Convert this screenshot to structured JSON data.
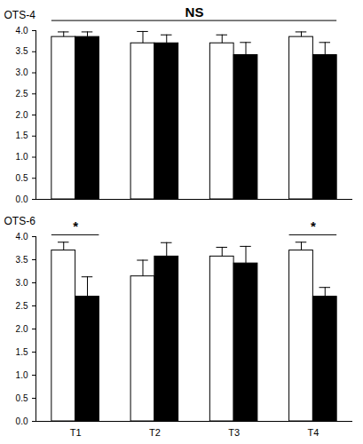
{
  "chart_data": [
    {
      "type": "bar",
      "title": "OTS-4",
      "categories": [
        null,
        null,
        null,
        null
      ],
      "series": [
        {
          "color": "#ffffff",
          "values": [
            3.85,
            3.7,
            3.7,
            3.85
          ],
          "errors": [
            0.12,
            0.28,
            0.2,
            0.12
          ]
        },
        {
          "color": "#000000",
          "values": [
            3.85,
            3.7,
            3.42,
            3.42
          ],
          "errors": [
            0.12,
            0.2,
            0.3,
            0.3
          ]
        }
      ],
      "ylim": [
        0,
        4
      ],
      "yticks": [
        {
          "value": 0,
          "label": "0.0"
        },
        0.5,
        {
          "value": 1,
          "label": "1.0"
        },
        1.5,
        {
          "value": 2,
          "label": "2.0"
        },
        2.5,
        {
          "value": 3,
          "label": "3.0"
        },
        3.5,
        {
          "value": 4,
          "label": "4.0"
        }
      ],
      "tick_labels": "y",
      "annotations": [
        {
          "text": "NS",
          "span": [
            0,
            3
          ]
        }
      ]
    },
    {
      "type": "bar",
      "title": "OTS-6",
      "categories": [
        "T1",
        "T2",
        "T3",
        "T4"
      ],
      "series": [
        {
          "color": "#ffffff",
          "values": [
            3.7,
            3.14,
            3.57,
            3.7
          ],
          "errors": [
            0.18,
            0.35,
            0.2,
            0.18
          ]
        },
        {
          "color": "#000000",
          "values": [
            2.7,
            3.57,
            3.42,
            2.7
          ],
          "errors": [
            0.43,
            0.3,
            0.37,
            0.2
          ]
        }
      ],
      "ylim": [
        0,
        4
      ],
      "yticks": [
        {
          "value": 0,
          "label": "0.0"
        },
        0.5,
        {
          "value": 1,
          "label": "1.0"
        },
        1.5,
        {
          "value": 2,
          "label": "2.0"
        },
        2.5,
        {
          "value": 3,
          "label": "3.0"
        },
        3.5,
        {
          "value": 4,
          "label": "4.0"
        }
      ],
      "annotations": [
        {
          "text": "*",
          "span": [
            0,
            0
          ]
        },
        {
          "text": "*",
          "span": [
            3,
            3
          ]
        }
      ]
    }
  ]
}
